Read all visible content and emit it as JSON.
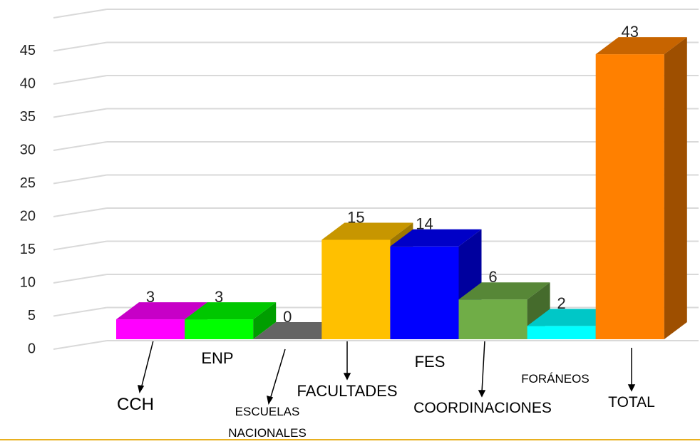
{
  "chart_data": {
    "type": "bar",
    "categories": [
      "CCH",
      "ENP",
      "ESCUELAS NACIONALES",
      "FACULTADES",
      "FES",
      "COORDINACIONES",
      "FORÁNEOS",
      "TOTAL"
    ],
    "values": [
      3,
      3,
      0,
      15,
      14,
      6,
      2,
      43
    ],
    "colors": [
      "#ff00ff",
      "#00ff00",
      "#808080",
      "#ffc000",
      "#0000ff",
      "#70ad47",
      "#00ffff",
      "#ff8000"
    ],
    "ylim": [
      0,
      50
    ],
    "yticks": [
      0,
      5,
      10,
      15,
      20,
      25,
      30,
      35,
      40,
      45
    ],
    "grid": true
  }
}
